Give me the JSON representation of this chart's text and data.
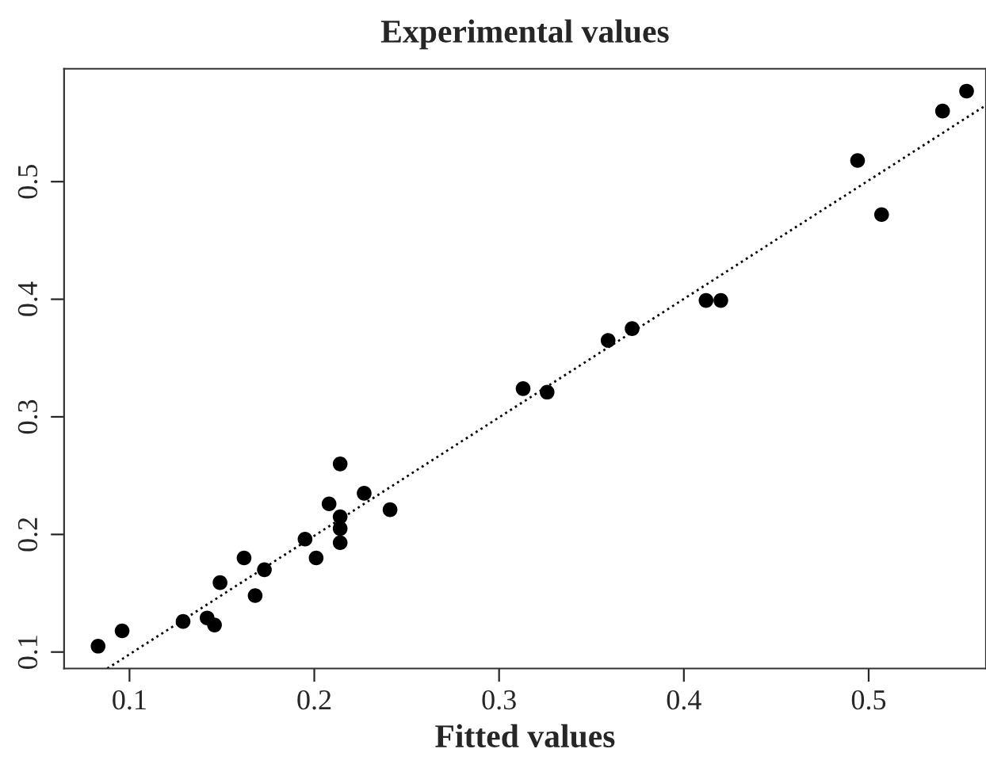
{
  "chart_data": {
    "type": "scatter",
    "title": "Experimental values",
    "xlabel": "Fitted values",
    "xlim": [
      0.0646,
      0.5635
    ],
    "ylim": [
      0.086,
      0.596
    ],
    "xticks": [
      0.1,
      0.2,
      0.3,
      0.4,
      0.5
    ],
    "yticks": [
      0.1,
      0.2,
      0.3,
      0.4,
      0.5
    ],
    "grid": false,
    "legend": false,
    "series": [
      {
        "marker": "circle",
        "color": "#000000",
        "x": [
          0.083,
          0.096,
          0.129,
          0.142,
          0.146,
          0.149,
          0.162,
          0.168,
          0.173,
          0.195,
          0.201,
          0.208,
          0.214,
          0.214,
          0.214,
          0.214,
          0.227,
          0.241,
          0.313,
          0.326,
          0.359,
          0.372,
          0.412,
          0.42,
          0.494,
          0.507,
          0.54,
          0.553
        ],
        "values": [
          0.105,
          0.118,
          0.126,
          0.129,
          0.123,
          0.159,
          0.18,
          0.148,
          0.17,
          0.196,
          0.18,
          0.226,
          0.26,
          0.215,
          0.205,
          0.193,
          0.235,
          0.221,
          0.324,
          0.321,
          0.365,
          0.375,
          0.399,
          0.399,
          0.518,
          0.472,
          0.56,
          0.577
        ]
      },
      {
        "type": "line",
        "color": "#000000",
        "line_style": "dotted",
        "x": [
          0.088,
          0.5635
        ],
        "values": [
          0.086,
          0.565
        ]
      }
    ]
  }
}
